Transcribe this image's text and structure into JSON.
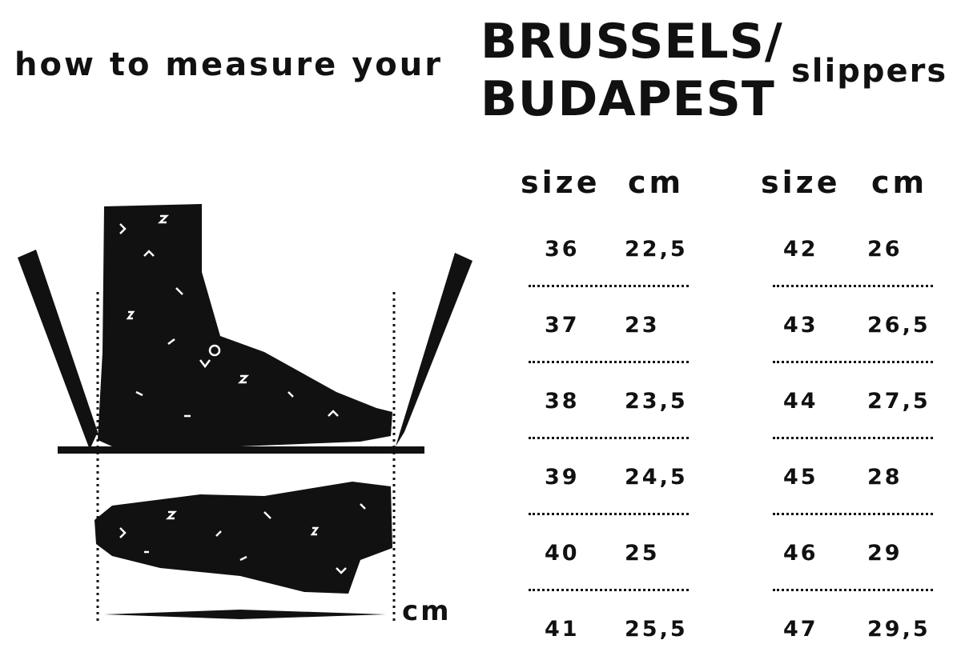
{
  "heading": {
    "lead": "how to measure your",
    "model_line1": "BRUSSELS/",
    "model_line2": "BUDAPEST",
    "tail": "slippers"
  },
  "illustration": {
    "unit_label": "cm"
  },
  "table": {
    "headers": {
      "size": "size",
      "cm": "cm"
    },
    "left": [
      {
        "size": "36",
        "cm": "22,5"
      },
      {
        "size": "37",
        "cm": "23"
      },
      {
        "size": "38",
        "cm": "23,5"
      },
      {
        "size": "39",
        "cm": "24,5"
      },
      {
        "size": "40",
        "cm": "25"
      },
      {
        "size": "41",
        "cm": "25,5"
      }
    ],
    "right": [
      {
        "size": "42",
        "cm": "26"
      },
      {
        "size": "43",
        "cm": "26,5"
      },
      {
        "size": "44",
        "cm": "27,5"
      },
      {
        "size": "45",
        "cm": "28"
      },
      {
        "size": "46",
        "cm": "29"
      },
      {
        "size": "47",
        "cm": "29,5"
      }
    ]
  }
}
